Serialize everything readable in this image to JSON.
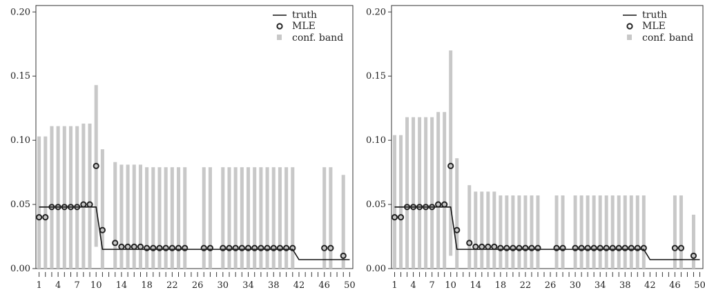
{
  "chart_data": [
    {
      "type": "scatter",
      "title": "",
      "xlabel": "",
      "ylabel": "",
      "xlim": [
        0.5,
        50.5
      ],
      "ylim": [
        0,
        0.205
      ],
      "yticks": [
        "0.00",
        "0.05",
        "0.10",
        "0.15",
        "0.20"
      ],
      "ytick_values": [
        0,
        0.05,
        0.1,
        0.15,
        0.2
      ],
      "xtick_labels": [
        "1",
        "4",
        "7",
        "10",
        "14",
        "18",
        "22",
        "26",
        "30",
        "34",
        "38",
        "42",
        "46",
        "50"
      ],
      "xtick_values": [
        1,
        4,
        7,
        10,
        14,
        18,
        22,
        26,
        30,
        34,
        38,
        42,
        46,
        50
      ],
      "legend": {
        "position": "top-right",
        "entries": [
          "truth",
          "MLE",
          "conf. band"
        ]
      },
      "truth": {
        "x": [
          1,
          10,
          11,
          41,
          42,
          50
        ],
        "y": [
          0.048,
          0.048,
          0.015,
          0.015,
          0.007,
          0.007
        ]
      },
      "mle": {
        "x": [
          1,
          2,
          3,
          4,
          5,
          6,
          7,
          8,
          9,
          10,
          11,
          13,
          14,
          15,
          16,
          17,
          18,
          19,
          20,
          21,
          22,
          23,
          24,
          27,
          28,
          30,
          31,
          32,
          33,
          34,
          35,
          36,
          37,
          38,
          39,
          40,
          41,
          46,
          47,
          49
        ],
        "y": [
          0.04,
          0.04,
          0.048,
          0.048,
          0.048,
          0.048,
          0.048,
          0.05,
          0.05,
          0.08,
          0.03,
          0.02,
          0.017,
          0.017,
          0.017,
          0.017,
          0.016,
          0.016,
          0.016,
          0.016,
          0.016,
          0.016,
          0.016,
          0.016,
          0.016,
          0.016,
          0.016,
          0.016,
          0.016,
          0.016,
          0.016,
          0.016,
          0.016,
          0.016,
          0.016,
          0.016,
          0.016,
          0.016,
          0.016,
          0.01
        ]
      },
      "bands": {
        "x": [
          1,
          2,
          3,
          4,
          5,
          6,
          7,
          8,
          9,
          10,
          11,
          13,
          14,
          15,
          16,
          17,
          18,
          19,
          20,
          21,
          22,
          23,
          24,
          27,
          28,
          30,
          31,
          32,
          33,
          34,
          35,
          36,
          37,
          38,
          39,
          40,
          41,
          46,
          47,
          49
        ],
        "lower": [
          0,
          0,
          0,
          0,
          0,
          0,
          0,
          0,
          0,
          0.017,
          0,
          0,
          0,
          0,
          0,
          0,
          0,
          0,
          0,
          0,
          0,
          0,
          0,
          0,
          0,
          0,
          0,
          0,
          0,
          0,
          0,
          0,
          0,
          0,
          0,
          0,
          0,
          0,
          0,
          0
        ],
        "upper": [
          0.103,
          0.103,
          0.111,
          0.111,
          0.111,
          0.111,
          0.111,
          0.113,
          0.113,
          0.143,
          0.093,
          0.083,
          0.081,
          0.081,
          0.081,
          0.081,
          0.079,
          0.079,
          0.079,
          0.079,
          0.079,
          0.079,
          0.079,
          0.079,
          0.079,
          0.079,
          0.079,
          0.079,
          0.079,
          0.079,
          0.079,
          0.079,
          0.079,
          0.079,
          0.079,
          0.079,
          0.079,
          0.079,
          0.079,
          0.073
        ]
      }
    },
    {
      "type": "scatter",
      "title": "",
      "xlabel": "",
      "ylabel": "",
      "xlim": [
        0.5,
        50.5
      ],
      "ylim": [
        0,
        0.205
      ],
      "yticks": [
        "0.00",
        "0.05",
        "0.10",
        "0.15",
        "0.20"
      ],
      "ytick_values": [
        0,
        0.05,
        0.1,
        0.15,
        0.2
      ],
      "xtick_labels": [
        "1",
        "4",
        "7",
        "10",
        "14",
        "18",
        "22",
        "26",
        "30",
        "34",
        "38",
        "42",
        "46",
        "50"
      ],
      "xtick_values": [
        1,
        4,
        7,
        10,
        14,
        18,
        22,
        26,
        30,
        34,
        38,
        42,
        46,
        50
      ],
      "legend": {
        "position": "top-right",
        "entries": [
          "truth",
          "MLE",
          "conf. band"
        ]
      },
      "truth": {
        "x": [
          1,
          10,
          11,
          41,
          42,
          50
        ],
        "y": [
          0.048,
          0.048,
          0.015,
          0.015,
          0.007,
          0.007
        ]
      },
      "mle": {
        "x": [
          1,
          2,
          3,
          4,
          5,
          6,
          7,
          8,
          9,
          10,
          11,
          13,
          14,
          15,
          16,
          17,
          18,
          19,
          20,
          21,
          22,
          23,
          24,
          27,
          28,
          30,
          31,
          32,
          33,
          34,
          35,
          36,
          37,
          38,
          39,
          40,
          41,
          46,
          47,
          49
        ],
        "y": [
          0.04,
          0.04,
          0.048,
          0.048,
          0.048,
          0.048,
          0.048,
          0.05,
          0.05,
          0.08,
          0.03,
          0.02,
          0.017,
          0.017,
          0.017,
          0.017,
          0.016,
          0.016,
          0.016,
          0.016,
          0.016,
          0.016,
          0.016,
          0.016,
          0.016,
          0.016,
          0.016,
          0.016,
          0.016,
          0.016,
          0.016,
          0.016,
          0.016,
          0.016,
          0.016,
          0.016,
          0.016,
          0.016,
          0.016,
          0.01
        ]
      },
      "bands": {
        "x": [
          1,
          2,
          3,
          4,
          5,
          6,
          7,
          8,
          9,
          10,
          11,
          13,
          14,
          15,
          16,
          17,
          18,
          19,
          20,
          21,
          22,
          23,
          24,
          27,
          28,
          30,
          31,
          32,
          33,
          34,
          35,
          36,
          37,
          38,
          39,
          40,
          41,
          46,
          47,
          49
        ],
        "lower": [
          0,
          0,
          0,
          0,
          0,
          0,
          0,
          0,
          0,
          0.01,
          0,
          0,
          0,
          0,
          0,
          0,
          0,
          0,
          0,
          0,
          0,
          0,
          0,
          0,
          0,
          0,
          0,
          0,
          0,
          0,
          0,
          0,
          0,
          0,
          0,
          0,
          0,
          0,
          0,
          0
        ],
        "upper": [
          0.104,
          0.104,
          0.118,
          0.118,
          0.118,
          0.118,
          0.118,
          0.122,
          0.122,
          0.17,
          0.086,
          0.065,
          0.06,
          0.06,
          0.06,
          0.06,
          0.057,
          0.057,
          0.057,
          0.057,
          0.057,
          0.057,
          0.057,
          0.057,
          0.057,
          0.057,
          0.057,
          0.057,
          0.057,
          0.057,
          0.057,
          0.057,
          0.057,
          0.057,
          0.057,
          0.057,
          0.057,
          0.057,
          0.057,
          0.042
        ]
      }
    }
  ],
  "colors": {
    "band": "#c8c8c8",
    "line": "#111111",
    "marker": "#222222"
  }
}
